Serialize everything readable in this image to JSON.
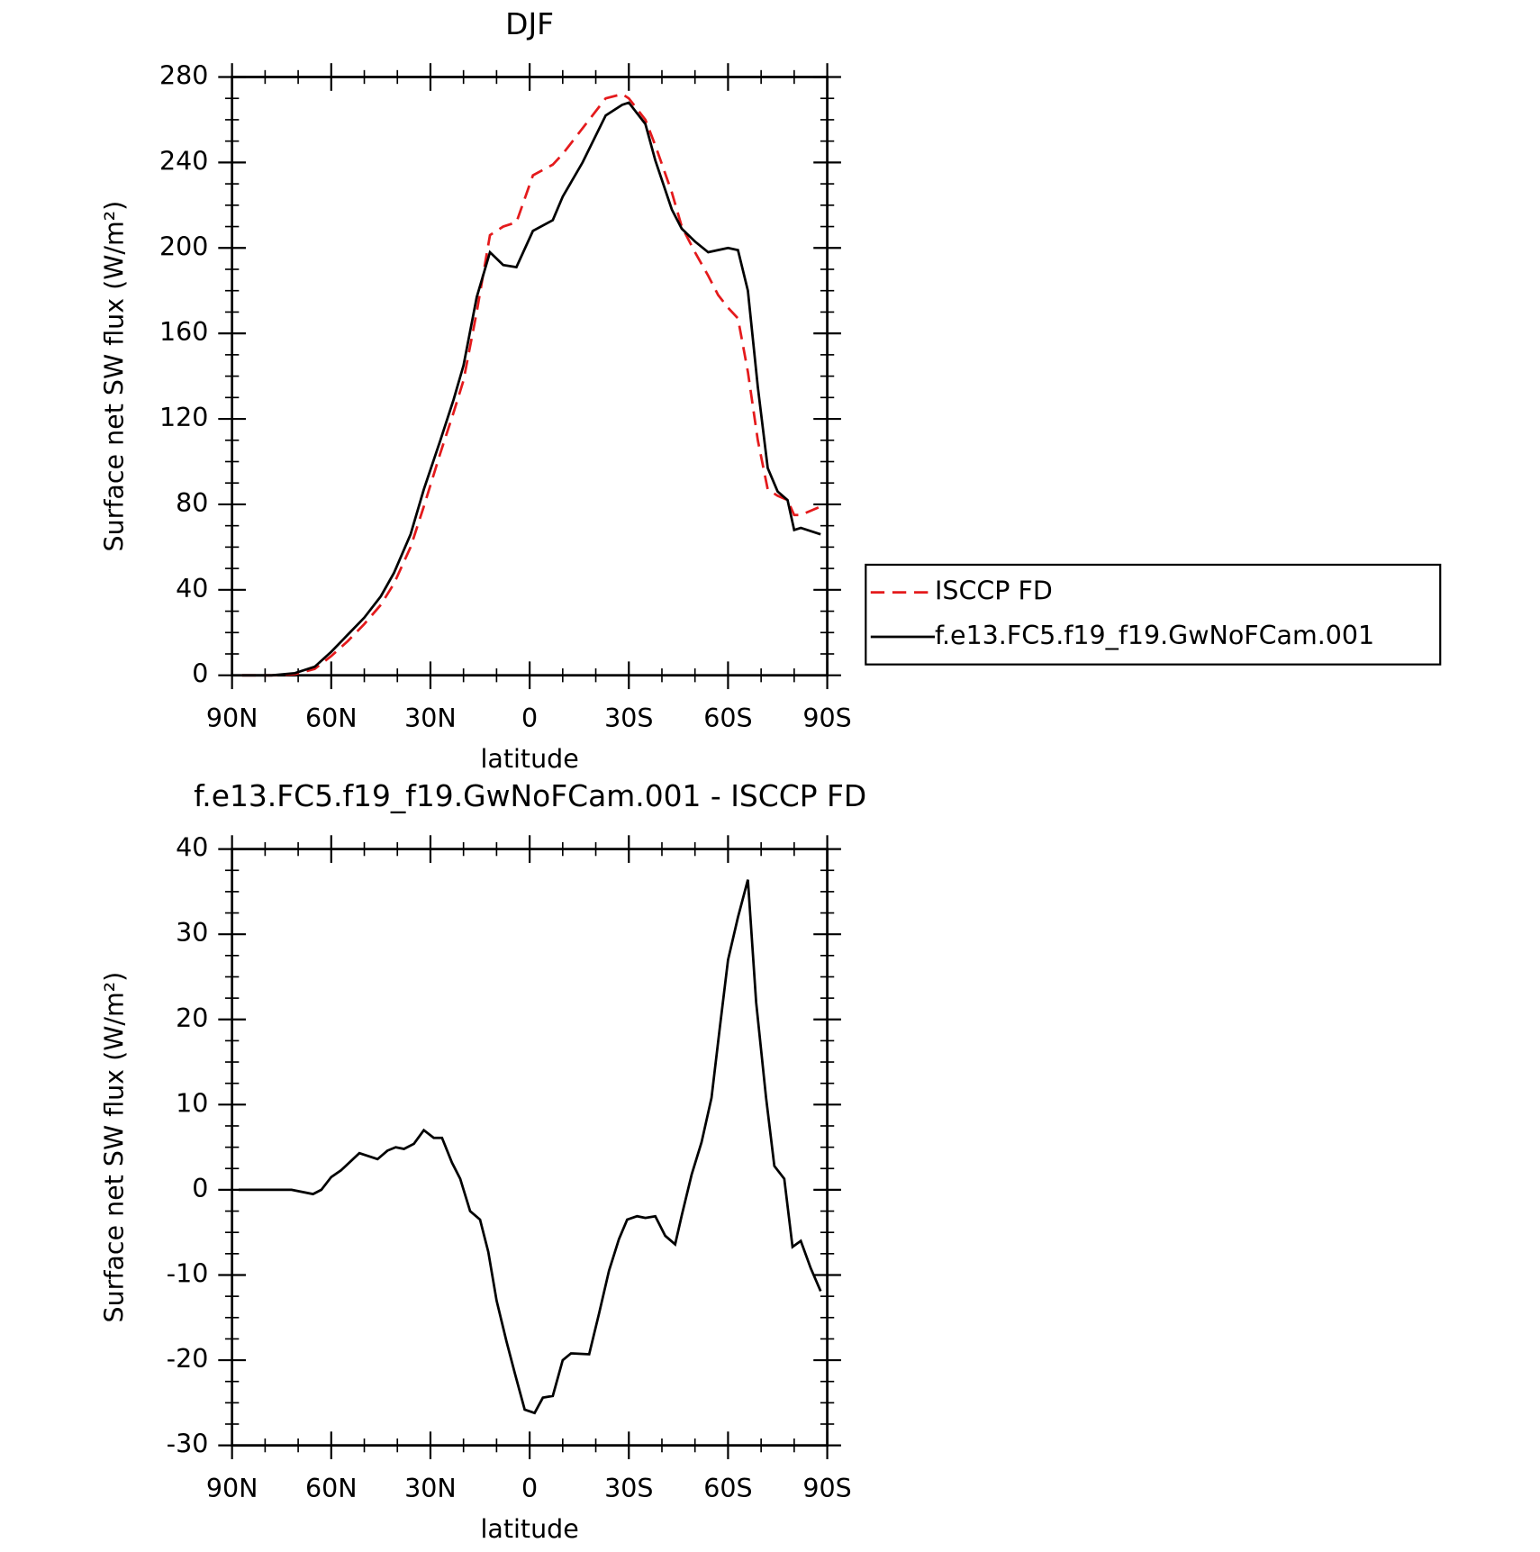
{
  "chart_data": [
    {
      "type": "line",
      "title": "DJF",
      "xlabel": "latitude",
      "ylabel": "Surface net SW flux (W/m²)",
      "x": [
        87,
        78,
        71,
        65,
        60,
        55,
        50,
        45,
        41,
        36,
        32,
        27,
        23,
        20,
        16,
        12,
        8,
        4,
        -1,
        -7,
        -10,
        -16,
        -23,
        -28,
        -30,
        -35,
        -38,
        -43,
        -46,
        -50,
        -54,
        -57,
        -60,
        -63,
        -66,
        -69,
        -72,
        -75,
        -78,
        -80,
        -82,
        -88
      ],
      "series": [
        {
          "name": "ISCCP FD",
          "color": "#e41a1c",
          "dash": true,
          "values": [
            0,
            0,
            0.5,
            3,
            9,
            16,
            24,
            33,
            43,
            60,
            79,
            104,
            123,
            138,
            170,
            206,
            210,
            212,
            234,
            239,
            244,
            256,
            270,
            272,
            270,
            260,
            248,
            226,
            210,
            198,
            187,
            178,
            172,
            167,
            142,
            110,
            87,
            84,
            82,
            75,
            75,
            79
          ]
        },
        {
          "name": "f.e13.FC5.f19_f19.GwNoFCam.001",
          "color": "#000000",
          "dash": false,
          "values": [
            0,
            0,
            1,
            4,
            11,
            19,
            27,
            37,
            48,
            66,
            87,
            110,
            129,
            145,
            177,
            198,
            192,
            191,
            208,
            213,
            224,
            240,
            262,
            267,
            268,
            258,
            241,
            218,
            209,
            203,
            198,
            199,
            200,
            199,
            180,
            135,
            97,
            86,
            82,
            68,
            69,
            66
          ]
        }
      ],
      "xlim": [
        90,
        -90
      ],
      "xticks": [
        {
          "value": 90,
          "label": "90N"
        },
        {
          "value": 60,
          "label": "60N"
        },
        {
          "value": 30,
          "label": "30N"
        },
        0,
        {
          "value": -30,
          "label": "30S"
        },
        {
          "value": -60,
          "label": "60S"
        },
        {
          "value": -90,
          "label": "90S"
        }
      ],
      "ylim": [
        0,
        280
      ],
      "yticks": [
        0,
        40,
        80,
        120,
        160,
        200,
        240,
        280
      ],
      "legend": "right"
    },
    {
      "type": "line",
      "title": "f.e13.FC5.f19_f19.GwNoFCam.001 - ISCCP FD",
      "xlabel": "latitude",
      "ylabel": "Surface net SW flux (W/m²)",
      "x": [
        88,
        72,
        65.5,
        63,
        60,
        57,
        51.5,
        46,
        43,
        40.5,
        38,
        35,
        32,
        29,
        26.5,
        23.5,
        21,
        18,
        15,
        12.5,
        10,
        7,
        4.5,
        1.5,
        -1.5,
        -4,
        -7,
        -10,
        -12.5,
        -18,
        -21,
        -24,
        -27,
        -29.5,
        -32.5,
        -35,
        -38,
        -41,
        -44,
        -46,
        -49,
        -52,
        -55,
        -57.5,
        -60,
        -63,
        -66,
        -68.5,
        -71.5,
        -74,
        -77,
        -79.5,
        -82,
        -85,
        -88
      ],
      "series": [
        {
          "color": "#000000",
          "dash": false,
          "values": [
            0,
            0,
            -0.5,
            0,
            1.5,
            2.3,
            4.3,
            3.6,
            4.6,
            5,
            4.8,
            5.4,
            7,
            6.1,
            6.1,
            3.2,
            1.3,
            -2.5,
            -3.5,
            -7.3,
            -13,
            -17.8,
            -21.5,
            -25.8,
            -26.2,
            -24.4,
            -24.2,
            -20,
            -19.2,
            -19.3,
            -14.5,
            -9.5,
            -5.8,
            -3.5,
            -3.1,
            -3.3,
            -3.1,
            -5.4,
            -6.4,
            -3,
            1.8,
            5.6,
            10.8,
            19,
            27,
            32,
            36.4,
            22,
            10.8,
            2.8,
            1.3,
            -6.7,
            -6,
            -9.2,
            -11.9
          ]
        }
      ],
      "xlim": [
        90,
        -90
      ],
      "xticks": [
        {
          "value": 90,
          "label": "90N"
        },
        {
          "value": 60,
          "label": "60N"
        },
        {
          "value": 30,
          "label": "30N"
        },
        0,
        {
          "value": -30,
          "label": "30S"
        },
        {
          "value": -60,
          "label": "60S"
        },
        {
          "value": -90,
          "label": "90S"
        }
      ],
      "ylim": [
        -30,
        40
      ],
      "yticks": [
        -30,
        -20,
        -10,
        0,
        10,
        20,
        30,
        40
      ]
    }
  ]
}
